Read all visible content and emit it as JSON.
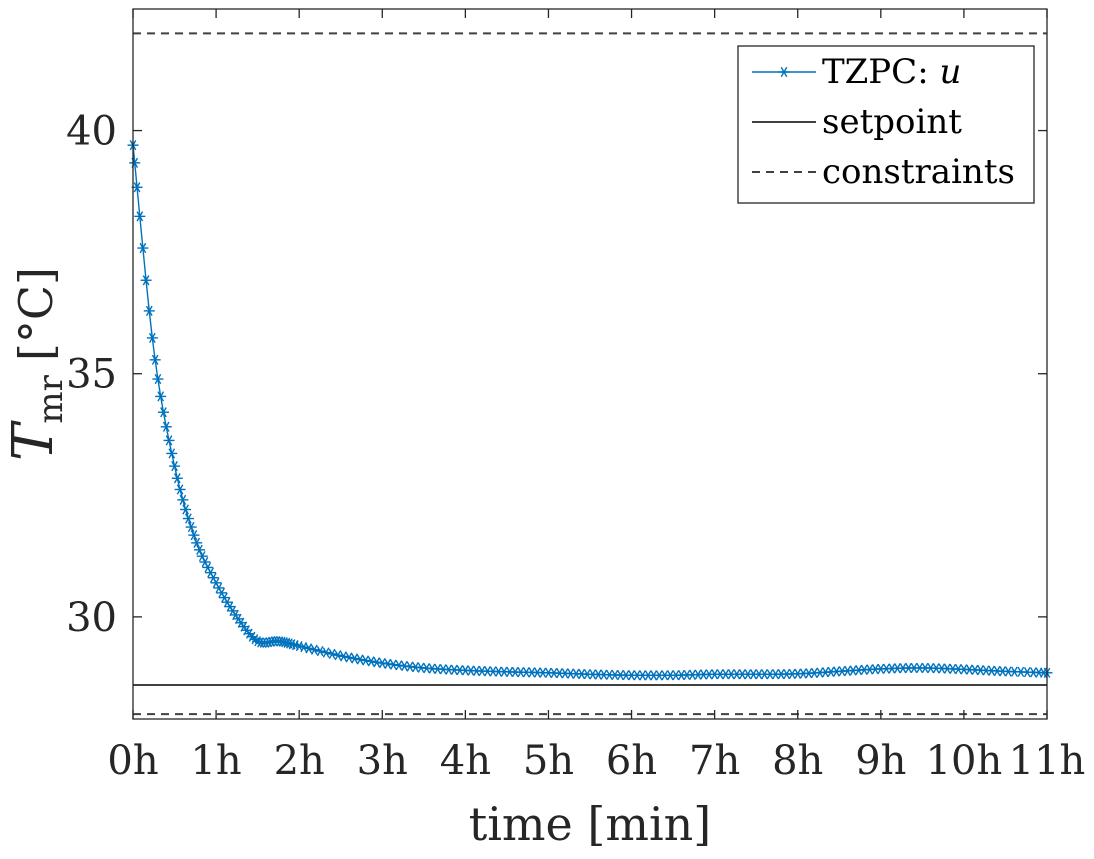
{
  "chart_data": {
    "type": "line",
    "title": "",
    "xlabel": "time [min]",
    "ylabel": {
      "symbol": "T",
      "subscript": "mr",
      "unit": "[°C]"
    },
    "xlim": [
      0,
      11
    ],
    "ylim": [
      27.9,
      42.5
    ],
    "xticks": [
      0,
      1,
      2,
      3,
      4,
      5,
      6,
      7,
      8,
      9,
      10,
      11
    ],
    "xtick_labels": [
      "0h",
      "1h",
      "2h",
      "3h",
      "4h",
      "5h",
      "6h",
      "7h",
      "8h",
      "9h",
      "10h",
      "11h"
    ],
    "yticks": [
      30,
      35,
      40
    ],
    "ytick_labels": [
      "30",
      "35",
      "40"
    ],
    "grid": false,
    "box": true,
    "legend_position": "top-right",
    "series": [
      {
        "name": "TZPC: u",
        "name_text": "TZPC: ",
        "name_math": "u",
        "style": "line-asterisk",
        "color": "#0072BD",
        "x": [
          0.0,
          0.25,
          0.5,
          0.75,
          1.0,
          1.25,
          1.5,
          1.75,
          2.0,
          2.5,
          3.0,
          3.5,
          4.0,
          4.5,
          5.0,
          5.5,
          6.0,
          6.5,
          7.0,
          7.5,
          8.0,
          8.5,
          9.0,
          9.5,
          10.0,
          10.5,
          11.0
        ],
        "y": [
          39.7,
          35.5,
          33.1,
          31.6,
          30.7,
          30.0,
          29.5,
          29.5,
          29.4,
          29.2,
          29.05,
          28.95,
          28.9,
          28.87,
          28.85,
          28.82,
          28.8,
          28.8,
          28.82,
          28.82,
          28.83,
          28.88,
          28.93,
          28.95,
          28.92,
          28.88,
          28.85
        ]
      },
      {
        "name": "setpoint",
        "style": "solid",
        "color": "#404040",
        "x": [
          0,
          11
        ],
        "y": [
          28.6,
          28.6
        ]
      },
      {
        "name": "constraints",
        "style": "dashed",
        "color": "#404040",
        "x": [
          0,
          11
        ],
        "y": [
          42.0,
          42.0
        ],
        "y_lower": 28.0
      }
    ]
  }
}
